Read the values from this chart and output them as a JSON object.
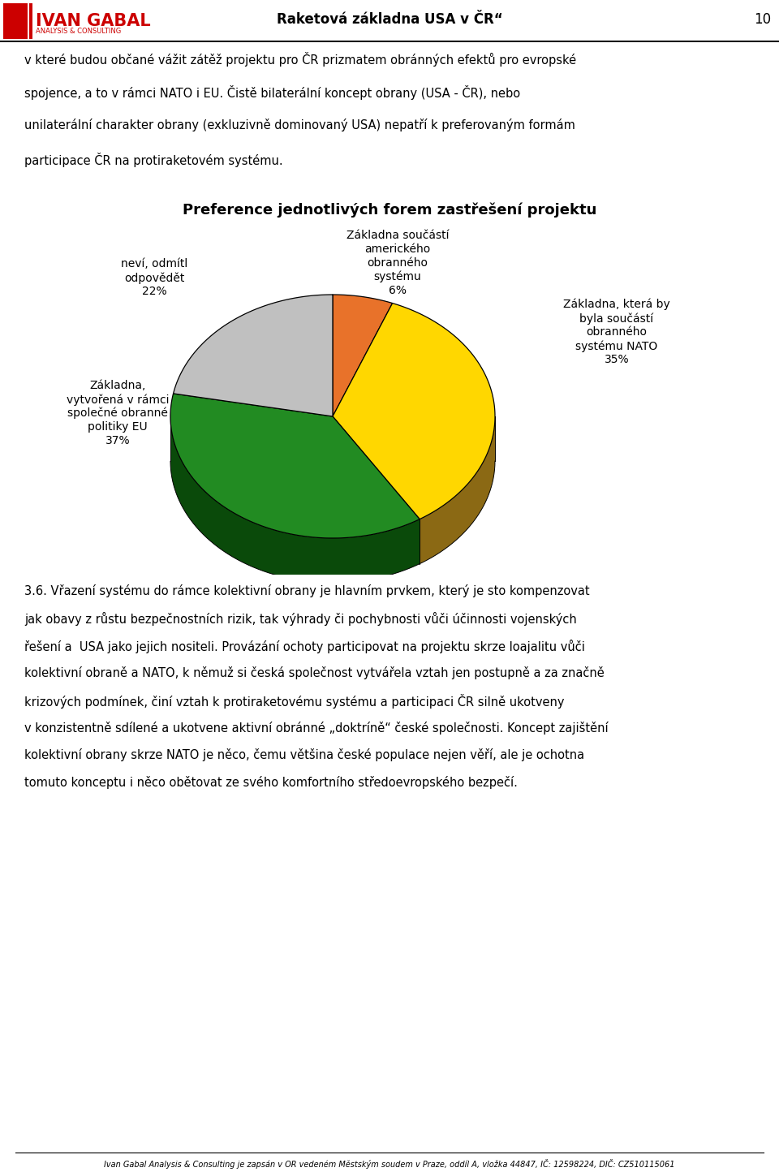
{
  "title_header": "Raketová základna USA v ČR“",
  "page_number": "10",
  "chart_title": "Preference jednotlivých forem zastřešení projektu",
  "slices": [
    {
      "value": 6,
      "color": "#E8722A",
      "dark": "#8B4412"
    },
    {
      "value": 35,
      "color": "#FFD700",
      "dark": "#8B6914"
    },
    {
      "value": 37,
      "color": "#228B22",
      "dark": "#0A4A0A"
    },
    {
      "value": 22,
      "color": "#C0C0C0",
      "dark": "#707070"
    }
  ],
  "label_orange": "Základna součástí\namerickho\nobránného\nsystému",
  "pct_orange": "6%",
  "label_yellow": "Základna, která by\nbyla součástí\nobránného\nsystému NATO",
  "pct_yellow": "35%",
  "label_green": "Základna,\nvytvořená v rámci\nspolečné obránné\npolitiky EU",
  "pct_green": "37%",
  "label_gray": "neví, odmítl\nodpovědět",
  "pct_gray": "22%",
  "para1_lines": [
    "v které budou občané vážit zátěž projektu pro ČR prizmatem obránných efektů pro evropské",
    "spojence, a to v rámci NATO i EU. Čistě bilaterální koncept obrany (USA - ČR), nebo",
    "unilaterální charakter obrany (exkluzivně dominovaný USA) nepatří k preferovaným formám",
    "participace ČR na protiraketovém systému."
  ],
  "para2_lines": [
    "3.6. Vřazení systému do rámce kolektivní obrany je hlavním prvkem, který je sto kompenzovat",
    "jak obavy z růstu bezpečnostních rizik, tak výhrady či pochybnosti vůči účinnosti vojenských",
    "řešení a  USA jako jejich nositeli. Provázání ochoty participovat na projektu skrze loajalitu vůči",
    "kolektivní obraně a NATO, k němuž si česká společnost vytvářela vztah jen postupně a za značně",
    "krizových podmínek, činí vztah k protiraketovému systému a participaci ČR silně ukotveny",
    "v konzistentně sdílené a ukotvene aktivní obránné „doktríně“ české společnosti. Koncept zajištění",
    "kolektivní obrany skrze NATO je něco, čemu většina české populace nejen věří, ale je ochotna",
    "tomuto konceptu i něco obětovat ze svého komfortního středoevropského bezpečí."
  ],
  "footer": "Ivan Gabal Analysis & Consulting je zapsán v OR vedeném Městským soudem v Praze, oddíl A, vložka 44847, IČ: 12598224, DIČ: CZ510115061"
}
